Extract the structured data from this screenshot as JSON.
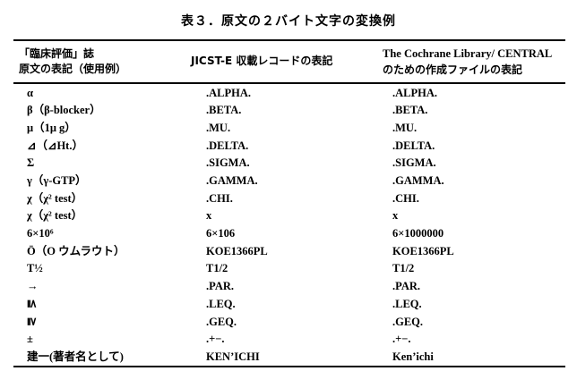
{
  "page": {
    "title": "表３．原文の２バイト文字の変換例"
  },
  "table": {
    "col_headers": [
      {
        "lines": [
          "「臨床評価」誌",
          "原文の表記（使用例）"
        ]
      },
      {
        "lines": [
          "JICST-E 収載レコードの表記"
        ]
      },
      {
        "lines": [
          "The Cochrane Library/ CENTRAL",
          "のための作成ファイルの表記"
        ]
      }
    ],
    "rows": [
      {
        "source": "α",
        "jicst": ".ALPHA.",
        "central": ".ALPHA."
      },
      {
        "source": "β（β-blocker）",
        "jicst": ".BETA.",
        "central": ".BETA."
      },
      {
        "source": "μ（1μ g）",
        "jicst": ".MU.",
        "central": ".MU."
      },
      {
        "source": "⊿（⊿Ht.）",
        "jicst": ".DELTA.",
        "central": ".DELTA."
      },
      {
        "source": "Σ",
        "jicst": ".SIGMA.",
        "central": ".SIGMA."
      },
      {
        "source": "γ（γ-GTP）",
        "jicst": ".GAMMA.",
        "central": ".GAMMA."
      },
      {
        "source": "χ（χ² test）",
        "jicst": ".CHI.",
        "central": ".CHI."
      },
      {
        "source": "χ（χ² test）",
        "jicst": "x",
        "central": "x"
      },
      {
        "source": "6×10⁶",
        "jicst": "6×106",
        "central": "6×1000000"
      },
      {
        "source": "Ö（O ウムラウト）",
        "jicst": "KOE1366PL",
        "central": "KOE1366PL"
      },
      {
        "source": "T½",
        "jicst": "T1/2",
        "central": "T1/2"
      },
      {
        "source": "→",
        "jicst": ".PAR.",
        "central": ".PAR."
      },
      {
        "source": "≦",
        "jicst": ".LEQ.",
        "central": ".LEQ.",
        "rotated": true
      },
      {
        "source": "≧",
        "jicst": ".GEQ.",
        "central": ".GEQ.",
        "rotated": true
      },
      {
        "source": "±",
        "jicst": ".+−.",
        "central": ".+−."
      },
      {
        "source": "建一(著者名として)",
        "jicst": "KEN’ICHI",
        "central": "Ken’ichi"
      }
    ],
    "colors": {
      "text": "#000000",
      "background": "#ffffff",
      "rule": "#000000"
    }
  }
}
